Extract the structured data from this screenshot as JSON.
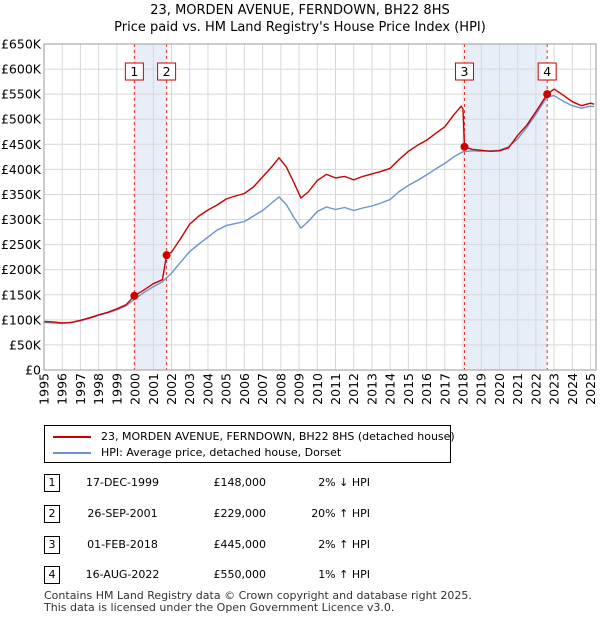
{
  "title": {
    "line1": "23, MORDEN AVENUE, FERNDOWN, BH22 8HS",
    "line2": "Price paid vs. HM Land Registry's House Price Index (HPI)"
  },
  "colors": {
    "property": "#cc0000",
    "hpi": "#6a93cc",
    "shade": "#e8eef8",
    "grid": "#d8d8d8",
    "vline": "#dd3333"
  },
  "chart_data": {
    "type": "line",
    "title": "23, MORDEN AVENUE, FERNDOWN, BH22 8HS - Price paid vs. HM Land Registry's House Price Index (HPI)",
    "xlabel": "",
    "ylabel": "",
    "xlim": [
      1995,
      2025.3
    ],
    "ylim": [
      0,
      650000
    ],
    "grid": true,
    "x_ticks": [
      1995,
      1996,
      1997,
      1998,
      1999,
      2000,
      2001,
      2002,
      2003,
      2004,
      2005,
      2006,
      2007,
      2008,
      2009,
      2010,
      2011,
      2012,
      2013,
      2014,
      2015,
      2016,
      2017,
      2018,
      2019,
      2020,
      2021,
      2022,
      2023,
      2024,
      2025
    ],
    "y_ticks": [
      0,
      50000,
      100000,
      150000,
      200000,
      250000,
      300000,
      350000,
      400000,
      450000,
      500000,
      550000,
      600000,
      650000
    ],
    "y_tick_labels": [
      "£0",
      "£50K",
      "£100K",
      "£150K",
      "£200K",
      "£250K",
      "£300K",
      "£350K",
      "£400K",
      "£450K",
      "£500K",
      "£550K",
      "£600K",
      "£650K"
    ],
    "shaded_ranges": [
      [
        1999.96,
        2001.73
      ],
      [
        2018.08,
        2022.62
      ]
    ],
    "series": [
      {
        "name": "23, MORDEN AVENUE, FERNDOWN, BH22 8HS (detached house)",
        "color": "#cc0000",
        "points": [
          [
            1995.0,
            97000
          ],
          [
            1995.5,
            96000
          ],
          [
            1996.0,
            94000
          ],
          [
            1996.5,
            95000
          ],
          [
            1997.0,
            99000
          ],
          [
            1997.5,
            104000
          ],
          [
            1998.0,
            110000
          ],
          [
            1998.5,
            115000
          ],
          [
            1999.0,
            122000
          ],
          [
            1999.5,
            130000
          ],
          [
            1999.96,
            148000
          ],
          [
            2000.5,
            160000
          ],
          [
            2001.0,
            172000
          ],
          [
            2001.5,
            180000
          ],
          [
            2001.73,
            229000
          ],
          [
            2002.0,
            235000
          ],
          [
            2002.5,
            262000
          ],
          [
            2003.0,
            291000
          ],
          [
            2003.5,
            307000
          ],
          [
            2004.0,
            319000
          ],
          [
            2004.5,
            329000
          ],
          [
            2005.0,
            341000
          ],
          [
            2005.5,
            347000
          ],
          [
            2006.0,
            352000
          ],
          [
            2006.5,
            365000
          ],
          [
            2007.0,
            385000
          ],
          [
            2007.5,
            405000
          ],
          [
            2007.9,
            423000
          ],
          [
            2008.3,
            405000
          ],
          [
            2008.7,
            375000
          ],
          [
            2009.1,
            343000
          ],
          [
            2009.5,
            355000
          ],
          [
            2010.0,
            378000
          ],
          [
            2010.5,
            390000
          ],
          [
            2011.0,
            383000
          ],
          [
            2011.5,
            386000
          ],
          [
            2012.0,
            379000
          ],
          [
            2012.5,
            386000
          ],
          [
            2013.0,
            391000
          ],
          [
            2013.5,
            396000
          ],
          [
            2014.0,
            402000
          ],
          [
            2014.5,
            420000
          ],
          [
            2015.0,
            436000
          ],
          [
            2015.5,
            448000
          ],
          [
            2016.0,
            458000
          ],
          [
            2016.5,
            472000
          ],
          [
            2017.0,
            485000
          ],
          [
            2017.5,
            509000
          ],
          [
            2017.9,
            526000
          ],
          [
            2018.0,
            520000
          ],
          [
            2018.08,
            445000
          ],
          [
            2018.5,
            440000
          ],
          [
            2019.0,
            438000
          ],
          [
            2019.5,
            436000
          ],
          [
            2020.0,
            437000
          ],
          [
            2020.5,
            443000
          ],
          [
            2021.0,
            468000
          ],
          [
            2021.5,
            488000
          ],
          [
            2022.0,
            515000
          ],
          [
            2022.62,
            550000
          ],
          [
            2023.0,
            560000
          ],
          [
            2023.5,
            548000
          ],
          [
            2024.0,
            535000
          ],
          [
            2024.5,
            527000
          ],
          [
            2025.0,
            532000
          ],
          [
            2025.2,
            530000
          ]
        ]
      },
      {
        "name": "HPI: Average price, detached house, Dorset",
        "color": "#6a93cc",
        "points": [
          [
            1995.0,
            95000
          ],
          [
            1995.5,
            94000
          ],
          [
            1996.0,
            93000
          ],
          [
            1996.5,
            95000
          ],
          [
            1997.0,
            98000
          ],
          [
            1997.5,
            103000
          ],
          [
            1998.0,
            109000
          ],
          [
            1998.5,
            114000
          ],
          [
            1999.0,
            120000
          ],
          [
            1999.5,
            128000
          ],
          [
            2000.0,
            142000
          ],
          [
            2000.5,
            155000
          ],
          [
            2001.0,
            166000
          ],
          [
            2001.5,
            176000
          ],
          [
            2002.0,
            193000
          ],
          [
            2002.5,
            215000
          ],
          [
            2003.0,
            236000
          ],
          [
            2003.5,
            251000
          ],
          [
            2004.0,
            265000
          ],
          [
            2004.5,
            279000
          ],
          [
            2005.0,
            288000
          ],
          [
            2005.5,
            292000
          ],
          [
            2006.0,
            296000
          ],
          [
            2006.5,
            307000
          ],
          [
            2007.0,
            318000
          ],
          [
            2007.5,
            333000
          ],
          [
            2007.9,
            345000
          ],
          [
            2008.3,
            330000
          ],
          [
            2008.7,
            305000
          ],
          [
            2009.1,
            283000
          ],
          [
            2009.5,
            296000
          ],
          [
            2010.0,
            316000
          ],
          [
            2010.5,
            325000
          ],
          [
            2011.0,
            320000
          ],
          [
            2011.5,
            324000
          ],
          [
            2012.0,
            318000
          ],
          [
            2012.5,
            323000
          ],
          [
            2013.0,
            327000
          ],
          [
            2013.5,
            333000
          ],
          [
            2014.0,
            340000
          ],
          [
            2014.5,
            356000
          ],
          [
            2015.0,
            368000
          ],
          [
            2015.5,
            378000
          ],
          [
            2016.0,
            389000
          ],
          [
            2016.5,
            401000
          ],
          [
            2017.0,
            412000
          ],
          [
            2017.5,
            425000
          ],
          [
            2018.0,
            435000
          ],
          [
            2018.5,
            437000
          ],
          [
            2019.0,
            436000
          ],
          [
            2019.5,
            437000
          ],
          [
            2020.0,
            438000
          ],
          [
            2020.5,
            445000
          ],
          [
            2021.0,
            461000
          ],
          [
            2021.5,
            484000
          ],
          [
            2022.0,
            510000
          ],
          [
            2022.62,
            545000
          ],
          [
            2023.0,
            547000
          ],
          [
            2023.5,
            536000
          ],
          [
            2024.0,
            527000
          ],
          [
            2024.5,
            522000
          ],
          [
            2025.0,
            526000
          ],
          [
            2025.2,
            525000
          ]
        ]
      }
    ],
    "sales": [
      {
        "label": "1",
        "x": 1999.96,
        "y": 148000
      },
      {
        "label": "2",
        "x": 2001.73,
        "y": 229000
      },
      {
        "label": "3",
        "x": 2018.08,
        "y": 445000
      },
      {
        "label": "4",
        "x": 2022.62,
        "y": 550000
      }
    ]
  },
  "legend": {
    "items": [
      {
        "label": "23, MORDEN AVENUE, FERNDOWN, BH22 8HS (detached house)",
        "color": "#cc0000"
      },
      {
        "label": "HPI: Average price, detached house, Dorset",
        "color": "#6a93cc"
      }
    ]
  },
  "transactions": [
    {
      "num": "1",
      "date": "17-DEC-1999",
      "price": "£148,000",
      "hpi": "2% ↓ HPI"
    },
    {
      "num": "2",
      "date": "26-SEP-2001",
      "price": "£229,000",
      "hpi": "20% ↑ HPI"
    },
    {
      "num": "3",
      "date": "01-FEB-2018",
      "price": "£445,000",
      "hpi": "2% ↑ HPI"
    },
    {
      "num": "4",
      "date": "16-AUG-2022",
      "price": "£550,000",
      "hpi": "1% ↑ HPI"
    }
  ],
  "footer": {
    "line1": "Contains HM Land Registry data © Crown copyright and database right 2025.",
    "line2": "This data is licensed under the Open Government Licence v3.0."
  }
}
